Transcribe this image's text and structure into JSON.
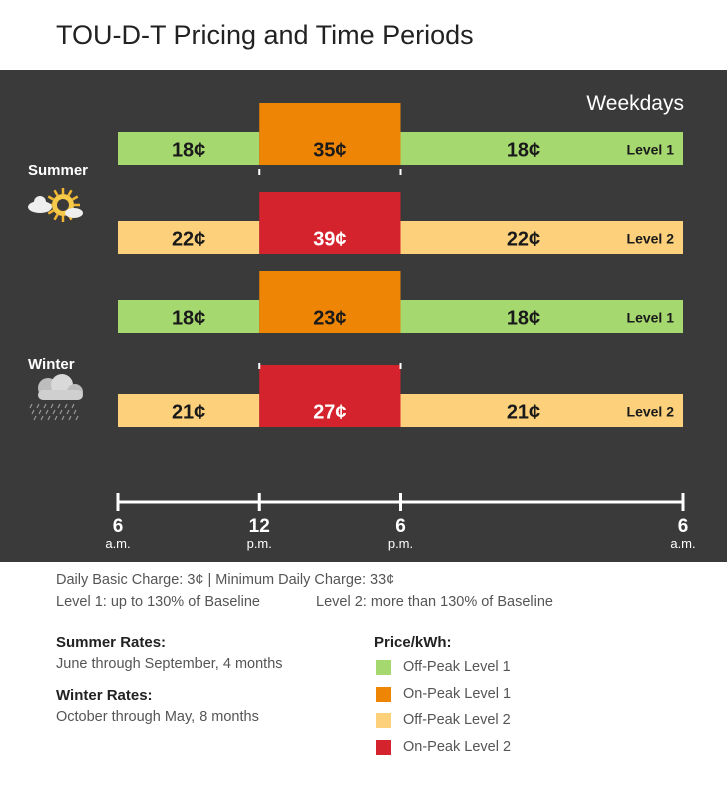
{
  "title": "TOU-D-T Pricing and Time Periods",
  "colors": {
    "off_peak_1": "#a5d86f",
    "on_peak_1": "#ef8505",
    "off_peak_2": "#fdd17c",
    "on_peak_2": "#d4232d",
    "background": "#3a3a3a"
  },
  "chart_data": {
    "type": "bar",
    "title": "Weekdays",
    "x_axis": {
      "range_hours": [
        6,
        30
      ],
      "ticks": [
        {
          "hour": 6,
          "value": "6",
          "period": "a.m."
        },
        {
          "hour": 12,
          "value": "12",
          "period": "p.m."
        },
        {
          "hour": 18,
          "value": "6",
          "period": "p.m."
        },
        {
          "hour": 30,
          "value": "6",
          "period": "a.m."
        }
      ]
    },
    "seasons": [
      {
        "name": "Summer",
        "icon": "sun-cloud-icon",
        "rows": [
          {
            "level_label": "Level 1",
            "segments": [
              {
                "start": 6,
                "end": 12,
                "price": "18¢",
                "kind": "off_peak_1",
                "raised": false
              },
              {
                "start": 12,
                "end": 18,
                "price": "35¢",
                "kind": "on_peak_1",
                "raised": true
              },
              {
                "start": 18,
                "end": 30,
                "price": "18¢",
                "kind": "off_peak_1",
                "raised": false
              }
            ]
          },
          {
            "level_label": "Level 2",
            "segments": [
              {
                "start": 6,
                "end": 12,
                "price": "22¢",
                "kind": "off_peak_2",
                "raised": false
              },
              {
                "start": 12,
                "end": 18,
                "price": "39¢",
                "kind": "on_peak_2",
                "raised": true
              },
              {
                "start": 18,
                "end": 30,
                "price": "22¢",
                "kind": "off_peak_2",
                "raised": false
              }
            ]
          }
        ]
      },
      {
        "name": "Winter",
        "icon": "rain-cloud-icon",
        "rows": [
          {
            "level_label": "Level 1",
            "segments": [
              {
                "start": 6,
                "end": 12,
                "price": "18¢",
                "kind": "off_peak_1",
                "raised": false
              },
              {
                "start": 12,
                "end": 18,
                "price": "23¢",
                "kind": "on_peak_1",
                "raised": true
              },
              {
                "start": 18,
                "end": 30,
                "price": "18¢",
                "kind": "off_peak_1",
                "raised": false
              }
            ]
          },
          {
            "level_label": "Level 2",
            "segments": [
              {
                "start": 6,
                "end": 12,
                "price": "21¢",
                "kind": "off_peak_2",
                "raised": false
              },
              {
                "start": 12,
                "end": 18,
                "price": "27¢",
                "kind": "on_peak_2",
                "raised": true
              },
              {
                "start": 18,
                "end": 30,
                "price": "21¢",
                "kind": "off_peak_2",
                "raised": false
              }
            ]
          }
        ]
      }
    ]
  },
  "info": {
    "line1": "Daily Basic Charge: 3¢   |   Minimum Daily Charge: 33¢",
    "line2a": "Level 1: up to 130% of Baseline",
    "line2b": "Level 2: more than 130% of Baseline"
  },
  "summer_rates": {
    "heading": "Summer Rates:",
    "text": "June through September, 4 months"
  },
  "winter_rates": {
    "heading": "Winter Rates:",
    "text": "October through May, 8 months"
  },
  "legend": {
    "heading": "Price/kWh:",
    "items": [
      {
        "label": "Off-Peak Level 1",
        "kind": "off_peak_1"
      },
      {
        "label": "On-Peak Level 1",
        "kind": "on_peak_1"
      },
      {
        "label": "Off-Peak Level 2",
        "kind": "off_peak_2"
      },
      {
        "label": "On-Peak Level 2",
        "kind": "on_peak_2"
      }
    ]
  }
}
